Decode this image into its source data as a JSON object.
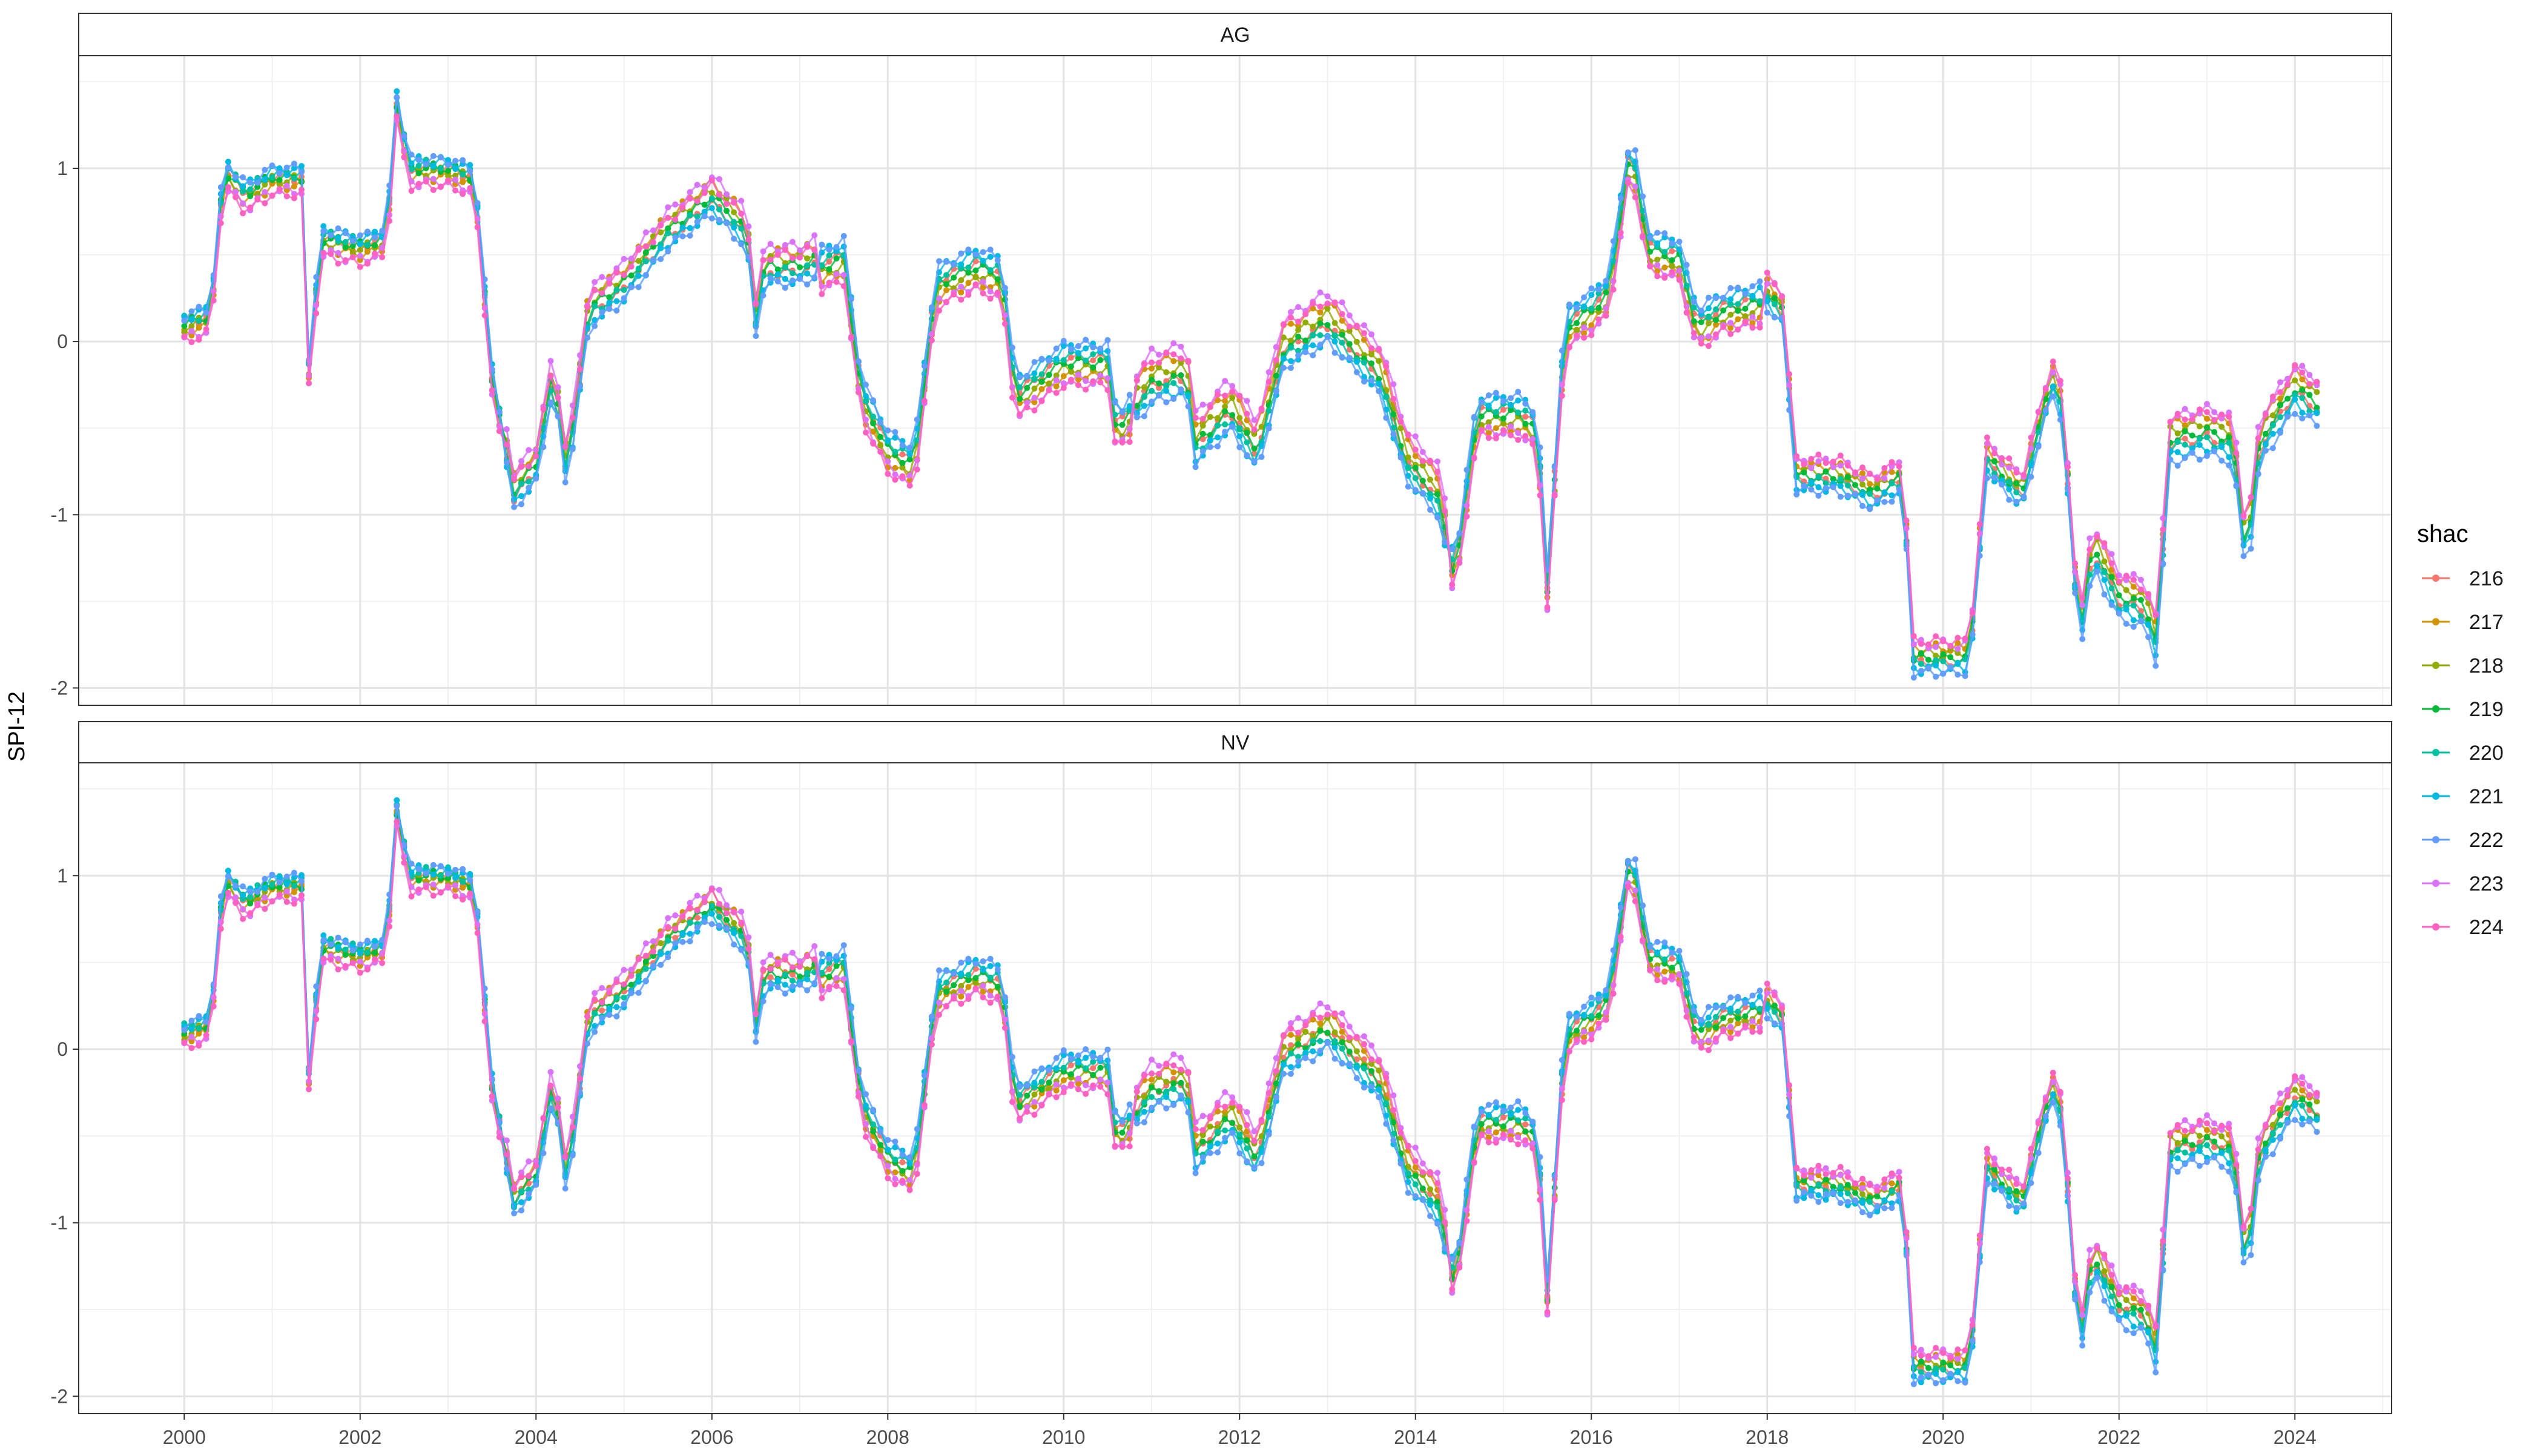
{
  "chart_data": {
    "type": "line",
    "ylabel": "SPI-12",
    "facets": [
      "AG",
      "NV"
    ],
    "ylim": [
      -2.1,
      1.65
    ],
    "xlim": [
      1998.8,
      2025.1
    ],
    "x_ticks": [
      2000,
      2002,
      2004,
      2006,
      2008,
      2010,
      2012,
      2014,
      2016,
      2018,
      2020,
      2022,
      2024
    ],
    "y_ticks": [
      -2,
      -1,
      0,
      1
    ],
    "grid": true,
    "legend": {
      "title": "shac",
      "position": "right",
      "entries": [
        "216",
        "217",
        "218",
        "219",
        "220",
        "221",
        "222",
        "223",
        "224"
      ]
    },
    "series_colors": [
      "#F8766D",
      "#D39200",
      "#93AA00",
      "#00BA38",
      "#00C19F",
      "#00B9E3",
      "#619CFF",
      "#DB72FB",
      "#FF61C3"
    ],
    "x_start": 2000.0,
    "x_step_months": 1,
    "anchors": [
      [
        2000.0,
        0.1
      ],
      [
        2000.3,
        0.15
      ],
      [
        2000.45,
        1.0
      ],
      [
        2000.7,
        0.85
      ],
      [
        2001.0,
        0.95
      ],
      [
        2001.35,
        0.95
      ],
      [
        2001.42,
        -0.2
      ],
      [
        2001.55,
        0.6
      ],
      [
        2002.0,
        0.55
      ],
      [
        2002.3,
        0.6
      ],
      [
        2002.42,
        1.4
      ],
      [
        2002.55,
        1.0
      ],
      [
        2003.0,
        1.0
      ],
      [
        2003.3,
        0.95
      ],
      [
        2003.5,
        -0.2
      ],
      [
        2003.75,
        -0.9
      ],
      [
        2004.0,
        -0.75
      ],
      [
        2004.2,
        -0.2
      ],
      [
        2004.35,
        -0.8
      ],
      [
        2004.6,
        0.15
      ],
      [
        2005.0,
        0.3
      ],
      [
        2005.5,
        0.6
      ],
      [
        2006.0,
        0.8
      ],
      [
        2006.4,
        0.6
      ],
      [
        2006.5,
        0.1
      ],
      [
        2006.6,
        0.4
      ],
      [
        2007.0,
        0.4
      ],
      [
        2007.5,
        0.5
      ],
      [
        2007.7,
        -0.3
      ],
      [
        2008.0,
        -0.6
      ],
      [
        2008.3,
        -0.7
      ],
      [
        2008.55,
        0.35
      ],
      [
        2009.0,
        0.45
      ],
      [
        2009.3,
        0.4
      ],
      [
        2009.45,
        -0.3
      ],
      [
        2010.0,
        -0.1
      ],
      [
        2010.5,
        -0.1
      ],
      [
        2010.6,
        -0.5
      ],
      [
        2011.0,
        -0.25
      ],
      [
        2011.4,
        -0.2
      ],
      [
        2011.5,
        -0.6
      ],
      [
        2011.9,
        -0.4
      ],
      [
        2012.2,
        -0.65
      ],
      [
        2012.5,
        -0.05
      ],
      [
        2013.0,
        0.1
      ],
      [
        2013.4,
        -0.1
      ],
      [
        2013.6,
        -0.2
      ],
      [
        2013.9,
        -0.7
      ],
      [
        2014.25,
        -0.9
      ],
      [
        2014.45,
        -1.35
      ],
      [
        2014.7,
        -0.4
      ],
      [
        2015.2,
        -0.4
      ],
      [
        2015.4,
        -0.5
      ],
      [
        2015.48,
        -1.55
      ],
      [
        2015.7,
        0.1
      ],
      [
        2016.0,
        0.2
      ],
      [
        2016.2,
        0.3
      ],
      [
        2016.45,
        1.15
      ],
      [
        2016.65,
        0.55
      ],
      [
        2017.0,
        0.5
      ],
      [
        2017.2,
        0.1
      ],
      [
        2017.5,
        0.2
      ],
      [
        2018.0,
        0.25
      ],
      [
        2018.2,
        0.15
      ],
      [
        2018.3,
        -0.8
      ],
      [
        2018.8,
        -0.8
      ],
      [
        2019.2,
        -0.9
      ],
      [
        2019.55,
        -0.8
      ],
      [
        2019.65,
        -1.85
      ],
      [
        2020.3,
        -1.85
      ],
      [
        2020.5,
        -0.7
      ],
      [
        2020.9,
        -0.9
      ],
      [
        2021.2,
        -0.3
      ],
      [
        2021.3,
        -0.2
      ],
      [
        2021.4,
        -0.7
      ],
      [
        2021.55,
        -1.75
      ],
      [
        2021.7,
        -1.2
      ],
      [
        2022.0,
        -1.5
      ],
      [
        2022.3,
        -1.55
      ],
      [
        2022.45,
        -1.8
      ],
      [
        2022.55,
        -0.6
      ],
      [
        2023.0,
        -0.55
      ],
      [
        2023.3,
        -0.6
      ],
      [
        2023.45,
        -1.3
      ],
      [
        2023.6,
        -0.6
      ],
      [
        2024.0,
        -0.3
      ],
      [
        2024.3,
        -0.4
      ]
    ],
    "series_offsets": {
      "AG": [
        [
          0.0,
          0.0,
          0.0,
          0.0,
          0.0,
          0.0,
          0.0
        ],
        [
          -0.05,
          0.12,
          -0.1,
          0.12,
          -0.1,
          0.08,
          0.12
        ],
        [
          -0.02,
          0.08,
          -0.06,
          0.06,
          -0.06,
          0.05,
          0.08
        ],
        [
          0.0,
          0.04,
          -0.02,
          0.0,
          -0.02,
          0.02,
          0.03
        ],
        [
          0.02,
          0.0,
          0.02,
          -0.04,
          0.02,
          -0.01,
          -0.02
        ],
        [
          0.04,
          -0.04,
          0.06,
          -0.08,
          0.06,
          -0.04,
          -0.06
        ],
        [
          0.05,
          -0.06,
          0.08,
          -0.1,
          0.08,
          -0.06,
          -0.1
        ],
        [
          -0.08,
          0.15,
          -0.12,
          0.18,
          -0.12,
          0.1,
          0.16
        ],
        [
          -0.1,
          0.1,
          -0.15,
          0.14,
          -0.14,
          0.12,
          0.14
        ]
      ],
      "NV": [
        [
          0.0,
          0.02,
          0.0,
          0.02,
          0.0,
          0.0,
          0.02
        ],
        [
          -0.04,
          0.1,
          -0.08,
          0.1,
          -0.08,
          0.06,
          0.1
        ],
        [
          -0.02,
          0.06,
          -0.05,
          0.05,
          -0.05,
          0.04,
          0.07
        ],
        [
          0.0,
          0.03,
          -0.02,
          0.0,
          -0.02,
          0.02,
          0.02
        ],
        [
          0.02,
          0.0,
          0.02,
          -0.03,
          0.02,
          -0.01,
          -0.02
        ],
        [
          0.03,
          -0.03,
          0.05,
          -0.07,
          0.05,
          -0.04,
          -0.05
        ],
        [
          0.04,
          -0.05,
          0.07,
          -0.09,
          0.07,
          -0.05,
          -0.09
        ],
        [
          -0.07,
          0.13,
          -0.1,
          0.16,
          -0.1,
          0.09,
          0.14
        ],
        [
          -0.09,
          0.09,
          -0.13,
          0.12,
          -0.12,
          0.1,
          0.12
        ]
      ]
    }
  }
}
